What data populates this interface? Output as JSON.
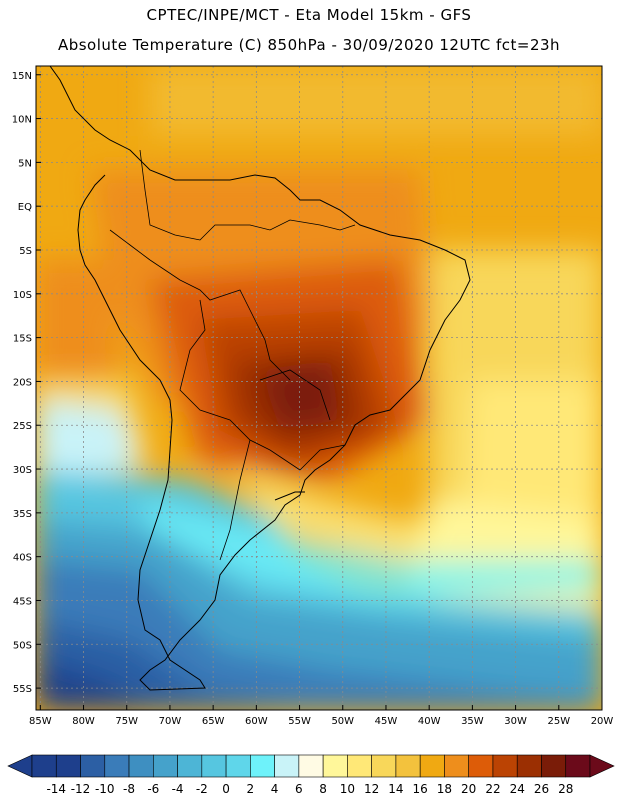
{
  "header": {
    "title_line1": "CPTEC/INPE/MCT -  Eta Model 15km - GFS",
    "title_line2": "Absolute Temperature (C) 850hPa - 30/09/2020 12UTC fct=23h"
  },
  "map": {
    "lat_labels": [
      "15N",
      "10N",
      "5N",
      "EQ",
      "5S",
      "10S",
      "15S",
      "20S",
      "25S",
      "30S",
      "35S",
      "40S",
      "45S",
      "50S",
      "55S"
    ],
    "lon_labels": [
      "85W",
      "80W",
      "75W",
      "70W",
      "65W",
      "60W",
      "55W",
      "50W",
      "45W",
      "40W",
      "35W",
      "30W",
      "25W",
      "20W"
    ],
    "lat_values": [
      15,
      10,
      5,
      0,
      -5,
      -10,
      -15,
      -20,
      -25,
      -30,
      -35,
      -40,
      -45,
      -50,
      -55
    ],
    "lon_values": [
      -85,
      -80,
      -75,
      -70,
      -65,
      -60,
      -55,
      -50,
      -45,
      -40,
      -35,
      -30,
      -25,
      -20
    ],
    "extent": {
      "lon_min": -85.5,
      "lon_max": -20,
      "lat_min": -57.5,
      "lat_max": 16
    }
  },
  "legend": {
    "labels": [
      "-14",
      "-12",
      "-10",
      "-8",
      "-6",
      "-4",
      "-2",
      "0",
      "2",
      "4",
      "6",
      "8",
      "10",
      "12",
      "14",
      "16",
      "18",
      "20",
      "22",
      "24",
      "26",
      "28"
    ],
    "colors": [
      "#1e3f8c",
      "#1e3f8c",
      "#2c5fa4",
      "#3a7cb9",
      "#3e8fc1",
      "#45a2cb",
      "#4db5d6",
      "#56c6e0",
      "#5fd6ea",
      "#6ef2fa",
      "#c9f3f8",
      "#fffbe4",
      "#fff79a",
      "#ffe877",
      "#f8d75a",
      "#f3c23d",
      "#f0a912",
      "#ee8e1c",
      "#dd5c08",
      "#bb4303",
      "#9b2f02",
      "#7a1c08",
      "#6b0a1a"
    ]
  }
}
